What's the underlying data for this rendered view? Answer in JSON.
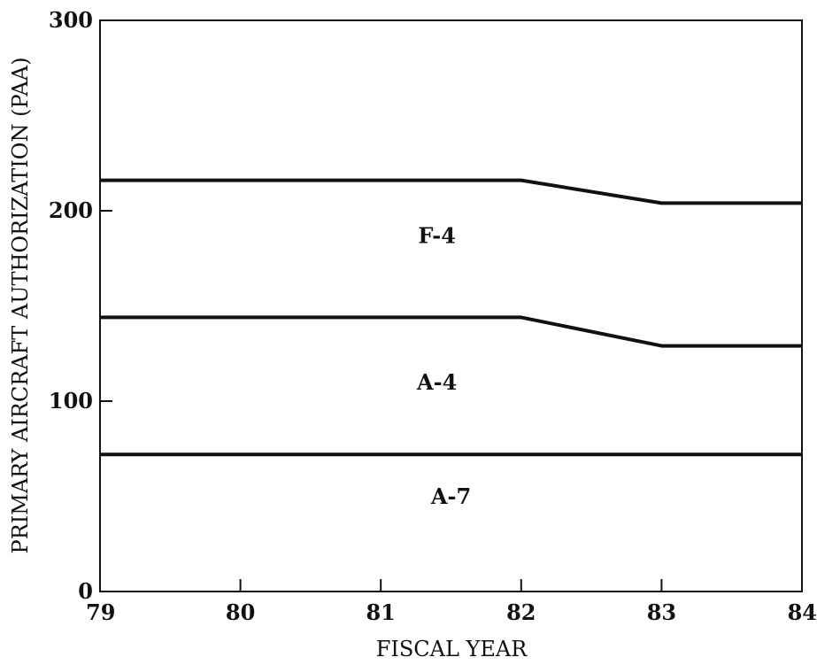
{
  "chart_data": {
    "type": "area",
    "x_label": "FISCAL YEAR",
    "y_label": "PRIMARY AIRCRAFT AUTHORIZATION (PAA)",
    "xlim": [
      79,
      84
    ],
    "ylim": [
      0,
      300
    ],
    "x_ticks": [
      {
        "label": "79",
        "value": 79
      },
      {
        "label": "80",
        "value": 80
      },
      {
        "label": "81",
        "value": 81
      },
      {
        "label": "82",
        "value": 82
      },
      {
        "label": "83",
        "value": 83
      },
      {
        "label": "84",
        "value": 84
      }
    ],
    "y_ticks": [
      {
        "label": "0",
        "value": 0
      },
      {
        "label": "100",
        "value": 100
      },
      {
        "label": "200",
        "value": 200
      },
      {
        "label": "300",
        "value": 300
      }
    ],
    "grid": false,
    "stacked": true,
    "x": [
      79,
      80,
      81,
      82,
      83,
      84
    ],
    "boundaries": [
      {
        "name": "A-7 top",
        "y": [
          72,
          72,
          72,
          72,
          72,
          72
        ]
      },
      {
        "name": "A-4 top",
        "y": [
          144,
          144,
          144,
          144,
          129,
          129
        ]
      },
      {
        "name": "F-4 top",
        "y": [
          216,
          216,
          216,
          216,
          204,
          204
        ]
      }
    ],
    "regions": [
      {
        "name": "A-7",
        "label_x": 81.5,
        "label_y": 46
      },
      {
        "name": "A-4",
        "label_x": 81.4,
        "label_y": 106
      },
      {
        "name": "F-4",
        "label_x": 81.4,
        "label_y": 183
      }
    ],
    "line_color": "#111111"
  }
}
